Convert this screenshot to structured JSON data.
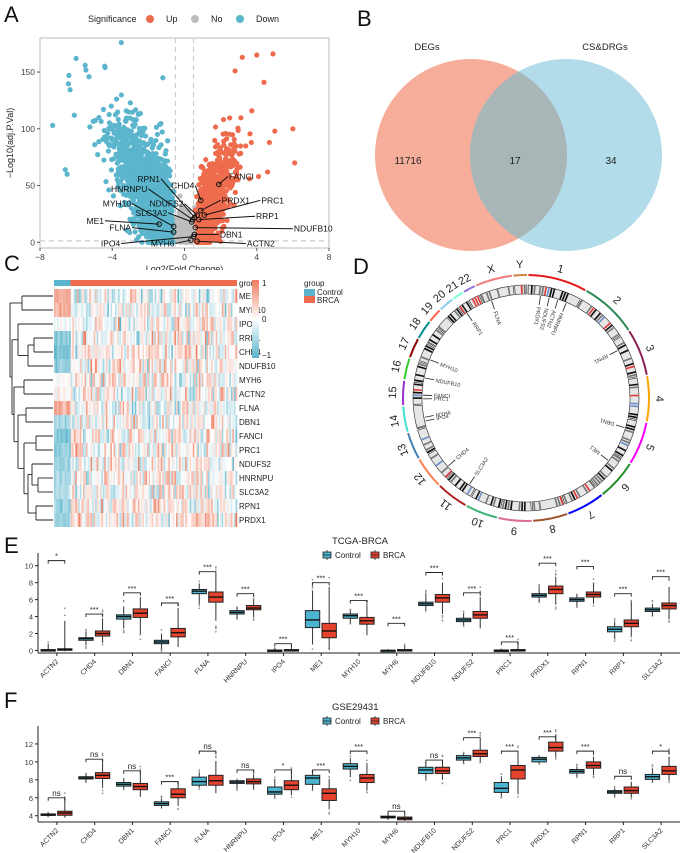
{
  "panels": {
    "A": "A",
    "B": "B",
    "C": "C",
    "D": "D",
    "E": "E",
    "F": "F"
  },
  "chart_data": [
    {
      "panel": "A",
      "type": "scatter",
      "title": "",
      "xlabel": "Log2(Fold Change)",
      "ylabel": "-Log10(adj.P.Val)",
      "xlim": [
        -8,
        8
      ],
      "ylim": [
        -5,
        180
      ],
      "xticks": [
        "-8",
        "-4",
        "0",
        "4",
        "8"
      ],
      "yticks": [
        "0",
        "50",
        "100",
        "150"
      ],
      "grid": false,
      "threshold_x": [
        -0.5,
        0.5
      ],
      "threshold_y": 1.3,
      "legend": {
        "title": "Significance",
        "placement": "top",
        "entries": [
          {
            "label": "Up",
            "color": "#EE6C4D"
          },
          {
            "label": "No",
            "color": "#BDBDBD"
          },
          {
            "label": "Down",
            "color": "#5BB5CC"
          }
        ]
      },
      "labeled_genes": [
        {
          "gene": "RPN1",
          "x": 0.55,
          "y": 22,
          "label_x": -1.3,
          "label_y": 56
        },
        {
          "gene": "HNRNPU",
          "x": 0.45,
          "y": 20,
          "label_x": -2.0,
          "label_y": 47
        },
        {
          "gene": "CHD4",
          "x": 0.9,
          "y": 37,
          "label_x": 0.6,
          "label_y": 50
        },
        {
          "gene": "FANCI",
          "x": 1.9,
          "y": 51,
          "label_x": 2.4,
          "label_y": 58
        },
        {
          "gene": "NDUFS2",
          "x": 0.7,
          "y": 24,
          "label_x": 0.0,
          "label_y": 34
        },
        {
          "gene": "PRDX1",
          "x": 0.9,
          "y": 28,
          "label_x": 2.0,
          "label_y": 37
        },
        {
          "gene": "PRC1",
          "x": 1.1,
          "y": 24,
          "label_x": 4.2,
          "label_y": 37
        },
        {
          "gene": "MYH10",
          "x": -0.6,
          "y": 14,
          "label_x": -2.9,
          "label_y": 34
        },
        {
          "gene": "SLC3A2",
          "x": 0.4,
          "y": 18,
          "label_x": -0.9,
          "label_y": 26
        },
        {
          "gene": "RRP1",
          "x": 0.8,
          "y": 20,
          "label_x": 3.9,
          "label_y": 23
        },
        {
          "gene": "ME1",
          "x": -1.4,
          "y": 16,
          "label_x": -4.4,
          "label_y": 19
        },
        {
          "gene": "FLNA",
          "x": -0.6,
          "y": 9,
          "label_x": -2.9,
          "label_y": 13
        },
        {
          "gene": "NDUFB10",
          "x": 0.6,
          "y": 13,
          "label_x": 6.0,
          "label_y": 12
        },
        {
          "gene": "DBN1",
          "x": 0.55,
          "y": 7,
          "label_x": 1.9,
          "label_y": 7
        },
        {
          "gene": "IPO4",
          "x": 0.5,
          "y": 5,
          "label_x": -3.5,
          "label_y": -1
        },
        {
          "gene": "MYH6",
          "x": 0.35,
          "y": 2,
          "label_x": -0.5,
          "label_y": -1
        },
        {
          "gene": "ACTN2",
          "x": 0.7,
          "y": 1,
          "label_x": 3.4,
          "label_y": -1
        }
      ]
    },
    {
      "panel": "B",
      "type": "venn",
      "sets": [
        {
          "name": "DEGs",
          "only": 11716,
          "color": "#F4A08A"
        },
        {
          "name": "CS&DRGs",
          "only": 34,
          "color": "#9FD3E3"
        }
      ],
      "intersection": 17
    },
    {
      "panel": "C",
      "type": "heatmap",
      "rows": [
        "ME1",
        "MYH10",
        "IPO4",
        "RRP1",
        "CHD4",
        "NDUFB10",
        "MYH6",
        "ACTN2",
        "FLNA",
        "DBN1",
        "FANCI",
        "PRC1",
        "NDUFS2",
        "HNRNPU",
        "SLC3A2",
        "RPN1",
        "PRDX1"
      ],
      "annotation_label": "group",
      "groups": [
        {
          "name": "Control",
          "color": "#5BB5CC",
          "fraction": 0.09
        },
        {
          "name": "BRCA",
          "color": "#EE6C4D",
          "fraction": 0.91
        }
      ],
      "color_scale": {
        "min": -1,
        "mid": 0,
        "max": 1,
        "low_color": "#5BB5CC",
        "mid_color": "#FFFFFF",
        "high_color": "#EE7B5E"
      },
      "colorbar_ticks": [
        "1",
        "0",
        "-1"
      ],
      "control_mean": [
        0.6,
        0.5,
        -0.1,
        -0.7,
        -0.8,
        -0.7,
        0.0,
        0.1,
        0.6,
        -0.5,
        -0.8,
        -0.7,
        -0.6,
        -0.5,
        -0.5,
        -0.6,
        -0.6
      ]
    },
    {
      "panel": "D",
      "type": "circos",
      "chromosomes": [
        "1",
        "2",
        "3",
        "4",
        "5",
        "6",
        "7",
        "8",
        "9",
        "10",
        "11",
        "12",
        "13",
        "14",
        "15",
        "16",
        "17",
        "18",
        "19",
        "20",
        "21",
        "22",
        "X",
        "Y"
      ],
      "chromosome_colors": [
        "#E41A1C",
        "#2E8B57",
        "#8B2252",
        "#FFA500",
        "#FF00FF",
        "#228B22",
        "#0000FF",
        "#A0522D",
        "#DB7093",
        "#3CB371",
        "#B22222",
        "#FF7F50",
        "#4682B4",
        "#40E0D0",
        "#9932CC",
        "#32CD32",
        "#8B0000",
        "#008B8B",
        "#FF6347",
        "#87CEEB",
        "#7FFFD4",
        "#9370DB",
        "#F08080",
        "#CD853F"
      ],
      "gene_labels": [
        {
          "gene": "PRDX1",
          "chr": "1"
        },
        {
          "gene": "NDUFS2",
          "chr": "1"
        },
        {
          "gene": "ACTN2",
          "chr": "1"
        },
        {
          "gene": "HNRNPU",
          "chr": "1"
        },
        {
          "gene": "RPN1",
          "chr": "3"
        },
        {
          "gene": "DBN1",
          "chr": "5"
        },
        {
          "gene": "ME1",
          "chr": "6"
        },
        {
          "gene": "SLC3A2",
          "chr": "11"
        },
        {
          "gene": "CHD4",
          "chr": "12"
        },
        {
          "gene": "IPO4",
          "chr": "14"
        },
        {
          "gene": "MYH6",
          "chr": "14"
        },
        {
          "gene": "NDUFB10",
          "chr": "16"
        },
        {
          "gene": "PRC1",
          "chr": "15"
        },
        {
          "gene": "FANCI",
          "chr": "15"
        },
        {
          "gene": "MYH10",
          "chr": "17"
        },
        {
          "gene": "RRP1",
          "chr": "21"
        },
        {
          "gene": "FLNA",
          "chr": "X"
        }
      ]
    },
    {
      "panel": "E",
      "type": "box",
      "title": "TCGA-BRCA",
      "legend": [
        {
          "label": "Control",
          "color": "#4BB4D0"
        },
        {
          "label": "BRCA",
          "color": "#E5432E"
        }
      ],
      "ylim": [
        -0.3,
        11.5
      ],
      "yticks": [
        0,
        2,
        4,
        6,
        8,
        10
      ],
      "categories": [
        "ACTN2",
        "CHD4",
        "DBN1",
        "FANCI",
        "FLNA",
        "HNRNPU",
        "IPO4",
        "ME1",
        "MYH10",
        "MYH6",
        "NDUFB10",
        "NDUFS2",
        "PRC1",
        "PRDX1",
        "RPN1",
        "RRP1",
        "SLC3A2"
      ],
      "series": [
        {
          "name": "Control",
          "q1": [
            0.0,
            1.2,
            3.7,
            0.8,
            6.7,
            4.3,
            0.0,
            2.7,
            3.8,
            0.0,
            5.3,
            3.4,
            0.0,
            6.3,
            5.8,
            2.2,
            4.6
          ],
          "median": [
            0.05,
            1.4,
            4.0,
            1.0,
            7.0,
            4.5,
            0.02,
            3.6,
            4.1,
            0.0,
            5.5,
            3.6,
            0.02,
            6.5,
            6.0,
            2.5,
            4.8
          ],
          "q3": [
            0.1,
            1.5,
            4.2,
            1.2,
            7.2,
            4.7,
            0.05,
            4.7,
            4.3,
            0.02,
            5.7,
            3.8,
            0.05,
            6.7,
            6.2,
            2.8,
            5.0
          ],
          "wmin": [
            0.0,
            0.6,
            2.6,
            0.2,
            5.5,
            3.8,
            0.0,
            0.7,
            3.2,
            0.0,
            4.6,
            3.0,
            0.0,
            5.8,
            5.3,
            1.5,
            4.1
          ],
          "wmax": [
            0.8,
            2.2,
            5.2,
            2.0,
            7.9,
            5.0,
            0.2,
            7.0,
            4.7,
            0.05,
            6.7,
            4.4,
            0.1,
            7.5,
            6.7,
            3.4,
            5.5
          ]
        },
        {
          "name": "BRCA",
          "q1": [
            0.02,
            1.7,
            3.9,
            1.6,
            5.7,
            4.8,
            0.02,
            1.5,
            3.1,
            0.02,
            5.7,
            3.8,
            0.02,
            6.7,
            6.3,
            2.8,
            4.9
          ],
          "median": [
            0.1,
            2.0,
            4.4,
            2.1,
            6.3,
            5.0,
            0.05,
            2.3,
            3.5,
            0.05,
            6.2,
            4.2,
            0.05,
            7.2,
            6.6,
            3.2,
            5.3
          ],
          "q3": [
            0.2,
            2.3,
            4.9,
            2.6,
            6.9,
            5.3,
            0.1,
            3.2,
            3.9,
            0.1,
            6.6,
            4.6,
            0.1,
            7.6,
            6.9,
            3.6,
            5.6
          ],
          "wmin": [
            0.0,
            1.0,
            2.0,
            0.5,
            3.5,
            4.0,
            0.0,
            0.2,
            1.8,
            0.0,
            4.3,
            2.6,
            0.0,
            5.5,
            5.5,
            1.7,
            3.8
          ],
          "wmax": [
            3.5,
            3.8,
            6.3,
            5.0,
            9.0,
            6.0,
            0.7,
            7.5,
            5.3,
            0.5,
            8.0,
            6.3,
            0.8,
            8.7,
            7.9,
            5.8,
            7.5
          ]
        }
      ],
      "significance": [
        "*",
        "***",
        "***",
        "***",
        "***",
        "***",
        "***",
        "***",
        "***",
        "***",
        "***",
        "***",
        "***",
        "***",
        "***",
        "***",
        "***"
      ],
      "sig_height": [
        10.6,
        4.3,
        6.8,
        5.6,
        9.3,
        6.7,
        0.8,
        8.0,
        5.9,
        3.2,
        9.2,
        6.8,
        1.0,
        10.3,
        9.9,
        6.7,
        8.7
      ]
    },
    {
      "panel": "F",
      "type": "box",
      "title": "GSE29431",
      "legend": [
        {
          "label": "Control",
          "color": "#4BB4D0"
        },
        {
          "label": "BRCA",
          "color": "#E5432E"
        }
      ],
      "ylim": [
        3.3,
        14.0
      ],
      "yticks": [
        4,
        6,
        8,
        10,
        12
      ],
      "categories": [
        "ACTN2",
        "CHD4",
        "DBN1",
        "FANCI",
        "FLNA",
        "HNRNPU",
        "IPO4",
        "ME1",
        "MYH10",
        "MYH6",
        "NDUFB10",
        "NDUFS2",
        "PRC1",
        "PRDX1",
        "RPN1",
        "RRP1",
        "SLC3A2"
      ],
      "series": [
        {
          "name": "Control",
          "q1": [
            4.05,
            8.1,
            7.3,
            5.15,
            7.4,
            7.6,
            6.4,
            7.5,
            9.2,
            3.75,
            8.7,
            10.2,
            6.6,
            10.0,
            8.75,
            6.5,
            8.05
          ],
          "median": [
            4.1,
            8.2,
            7.5,
            5.35,
            7.8,
            7.75,
            6.65,
            8.2,
            9.5,
            3.85,
            9.1,
            10.45,
            7.05,
            10.3,
            8.95,
            6.65,
            8.35
          ],
          "q3": [
            4.2,
            8.35,
            7.7,
            5.55,
            8.3,
            7.9,
            7.2,
            8.5,
            9.8,
            3.95,
            9.4,
            10.7,
            7.7,
            10.5,
            9.15,
            6.8,
            8.6
          ],
          "wmin": [
            3.95,
            7.8,
            7.0,
            4.8,
            7.1,
            7.1,
            6.1,
            6.9,
            8.3,
            3.6,
            8.2,
            9.9,
            6.2,
            9.7,
            8.4,
            6.2,
            7.8
          ],
          "wmax": [
            4.3,
            8.6,
            8.0,
            5.9,
            8.8,
            8.0,
            8.1,
            8.8,
            10.3,
            4.1,
            10.0,
            10.9,
            8.4,
            10.6,
            9.5,
            7.1,
            9.2
          ]
        },
        {
          "name": "BRCA",
          "q1": [
            4.05,
            8.15,
            6.9,
            6.0,
            7.4,
            7.55,
            6.9,
            5.7,
            7.7,
            3.55,
            8.7,
            10.6,
            8.1,
            11.2,
            9.3,
            6.5,
            8.6
          ],
          "median": [
            4.3,
            8.5,
            7.25,
            6.4,
            7.9,
            7.8,
            7.4,
            6.5,
            8.2,
            3.7,
            9.0,
            10.9,
            9.1,
            11.6,
            9.6,
            6.8,
            9.0
          ],
          "q3": [
            4.5,
            8.8,
            7.6,
            7.0,
            8.5,
            8.1,
            7.9,
            7.0,
            8.6,
            3.85,
            9.4,
            11.3,
            9.6,
            12.2,
            10.0,
            7.2,
            9.5
          ],
          "wmin": [
            3.9,
            7.1,
            6.1,
            5.1,
            6.5,
            7.0,
            6.3,
            4.7,
            6.8,
            3.4,
            8.0,
            10.0,
            6.5,
            10.5,
            8.6,
            6.1,
            8.0
          ],
          "wmax": [
            5.8,
            10.0,
            8.8,
            7.5,
            10.0,
            8.6,
            8.8,
            8.1,
            9.6,
            4.1,
            10.2,
            12.4,
            11.2,
            13.0,
            10.6,
            7.8,
            10.6
          ]
        }
      ],
      "significance": [
        "ns",
        "ns",
        "ns",
        "***",
        "ns",
        "ns",
        "*",
        "***",
        "***",
        "ns",
        "ns",
        "***",
        "***",
        "***",
        "***",
        "ns",
        "*"
      ],
      "sig_height": [
        6.0,
        10.3,
        9.0,
        7.8,
        11.2,
        9.1,
        9.1,
        9.1,
        11.2,
        4.5,
        10.2,
        12.7,
        11.2,
        12.8,
        11.2,
        8.4,
        11.2
      ]
    }
  ]
}
